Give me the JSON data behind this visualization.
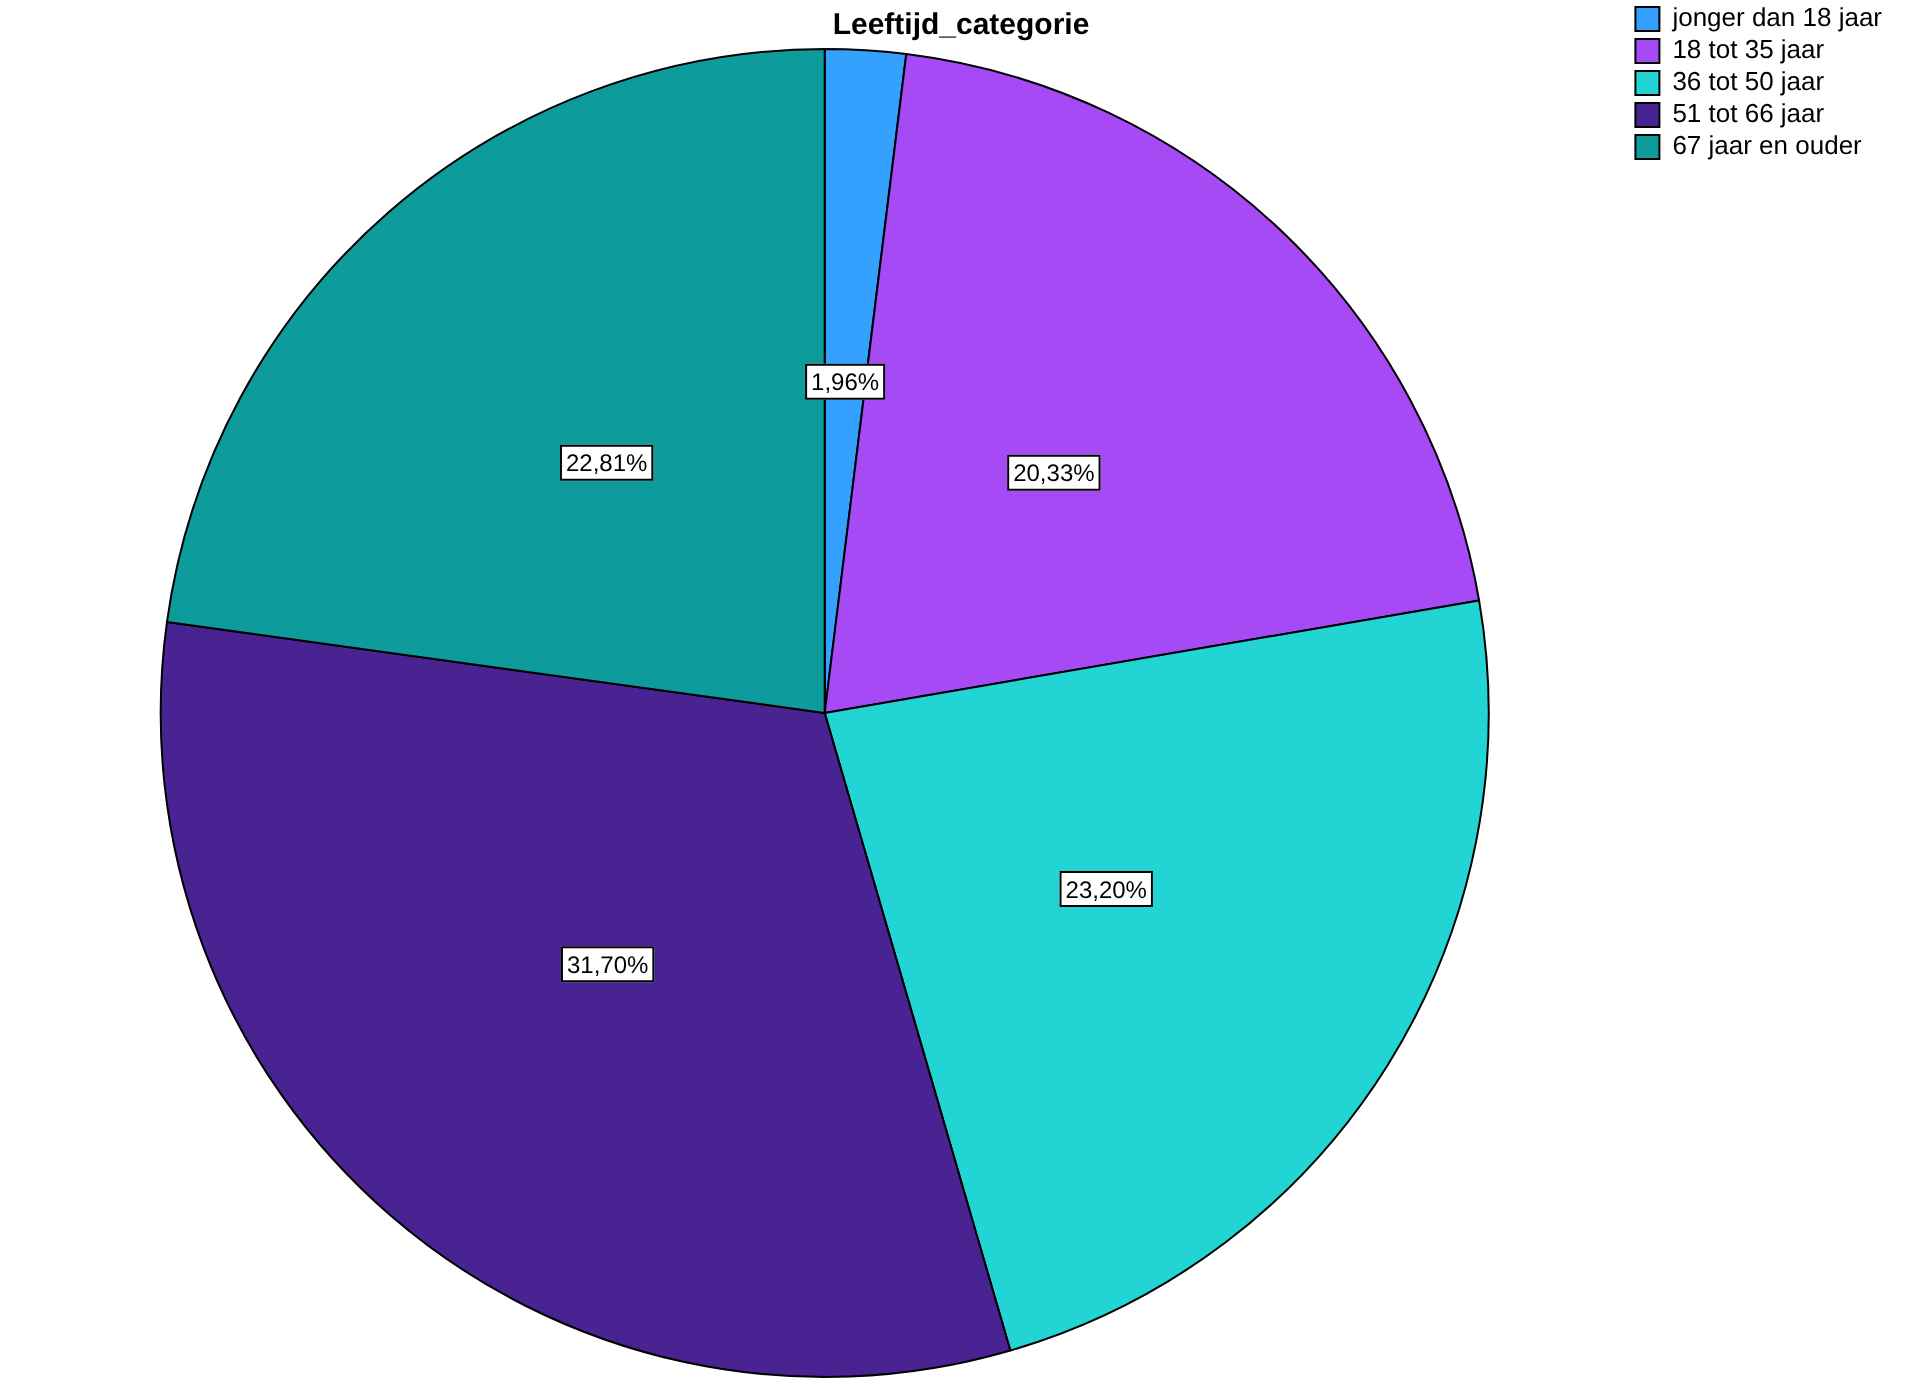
{
  "chart_data": {
    "type": "pie",
    "title": "Leeftijd_categorie",
    "categories": [
      "jonger dan 18 jaar",
      "18 tot 35 jaar",
      "36 tot 50 jaar",
      "51 tot 66 jaar",
      "67 jaar en ouder"
    ],
    "values": [
      1.96,
      20.33,
      23.2,
      31.7,
      22.81
    ],
    "colors": [
      "#33a1fd",
      "#a64af5",
      "#22d4d4",
      "#4a2392",
      "#0e9b9b"
    ],
    "value_labels": [
      "1,96%",
      "20,33%",
      "23,20%",
      "31,70%",
      "22,81%"
    ],
    "legend": "top right"
  }
}
